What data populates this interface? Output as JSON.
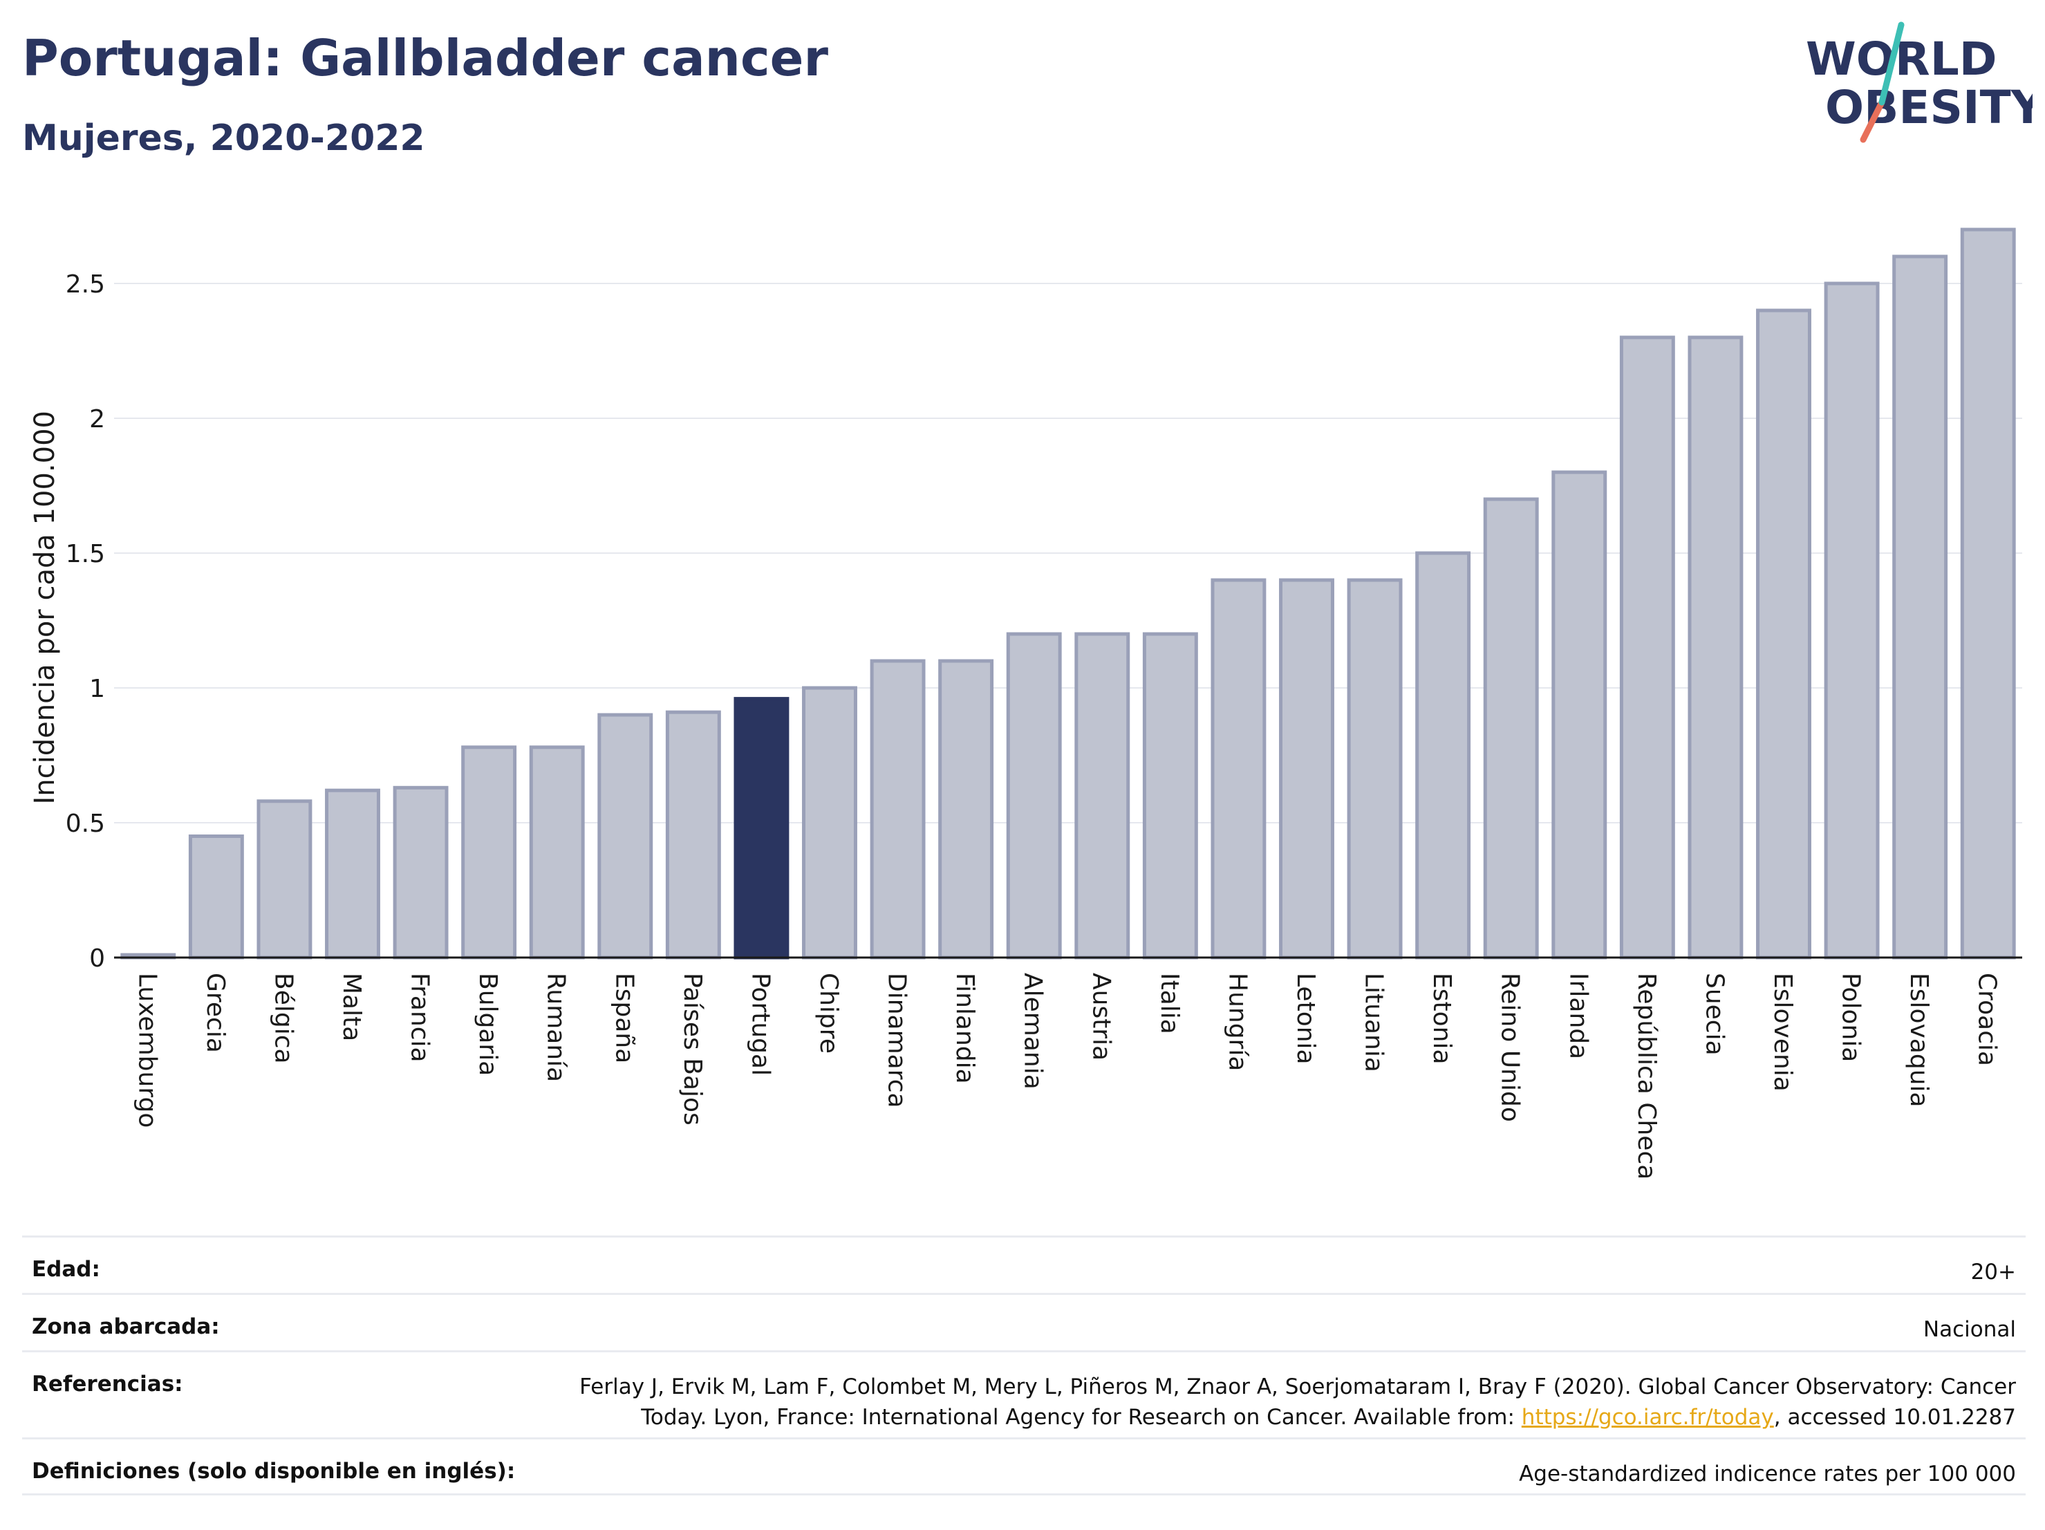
{
  "title": "Portugal: Gallbladder cancer",
  "subtitle": "Mujeres, 2020-2022",
  "logo": {
    "line1": "WORLD",
    "line2": "OBESITY",
    "accent_teal": "#3dbfb5",
    "accent_red": "#e8705a",
    "text_color": "#2a3560"
  },
  "colors": {
    "bar": "#bfc3d0",
    "bar_edge": "#9aa0b8",
    "highlight": "#2a3560",
    "grid": "#e6e8ee"
  },
  "chart_data": {
    "type": "bar",
    "title": "Portugal: Gallbladder cancer",
    "subtitle": "Mujeres, 2020-2022",
    "ylabel": "Incidencia por cada 100.000",
    "xlabel": "",
    "ylim": [
      0,
      2.75
    ],
    "yticks": [
      0,
      0.5,
      1,
      1.5,
      2,
      2.5
    ],
    "ytick_labels": [
      "0",
      "0.5",
      "1",
      "1.5",
      "2",
      "2.5"
    ],
    "grid": true,
    "highlight": "Portugal",
    "categories": [
      "Luxemburgo",
      "Grecia",
      "Bélgica",
      "Malta",
      "Francia",
      "Bulgaria",
      "Rumanía",
      "España",
      "Países Bajos",
      "Portugal",
      "Chipre",
      "Dinamarca",
      "Finlandia",
      "Alemania",
      "Austria",
      "Italia",
      "Hungría",
      "Letonia",
      "Lituania",
      "Estonia",
      "Reino Unido",
      "Irlanda",
      "República Checa",
      "Suecia",
      "Eslovenia",
      "Polonia",
      "Eslovaquia",
      "Croacia"
    ],
    "values": [
      0.01,
      0.45,
      0.58,
      0.62,
      0.63,
      0.78,
      0.78,
      0.9,
      0.91,
      0.96,
      1.0,
      1.1,
      1.1,
      1.2,
      1.2,
      1.2,
      1.4,
      1.4,
      1.4,
      1.5,
      1.7,
      1.8,
      2.3,
      2.3,
      2.4,
      2.5,
      2.6,
      2.7
    ]
  },
  "meta": [
    {
      "key": "Edad:",
      "value": "20+"
    },
    {
      "key": "Zona abarcada:",
      "value": "Nacional"
    },
    {
      "key": "Referencias:",
      "value_line1": "Ferlay J, Ervik M, Lam F, Colombet M, Mery L, Piñeros M, Znaor A, Soerjomataram I, Bray F (2020). Global Cancer Observatory: Cancer",
      "value_line2_pre": "Today. Lyon, France: International Agency for Research on Cancer. Available from: ",
      "link": "https://gco.iarc.fr/today",
      "value_line2_post": ", accessed 10.01.2287"
    },
    {
      "key": "Definiciones (solo disponible en inglés):",
      "value": "Age-standardized indicence rates per 100 000"
    }
  ]
}
